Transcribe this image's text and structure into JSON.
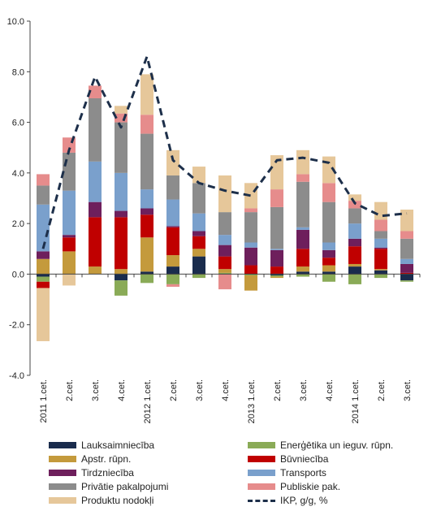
{
  "chart_data": {
    "type": "bar",
    "stacked": true,
    "title": "",
    "xlabel": "",
    "ylabel": "",
    "ylim": [
      -4,
      10
    ],
    "yticks": [
      -4,
      -2,
      0,
      2,
      4,
      6,
      8,
      10
    ],
    "ytick_labels": [
      "-4.0",
      "-2.0",
      "0.0",
      "2.0",
      "4.0",
      "6.0",
      "8.0",
      "10.0"
    ],
    "categories": [
      "2011 1.cet.",
      "2.cet.",
      "3.cet.",
      "4.cet.",
      "2012 1.cet.",
      "2.cet.",
      "3.cet.",
      "4.cet.",
      "2013 1.cet.",
      "2.cet.",
      "3.cet.",
      "4.cet.",
      "2014 1.cet.",
      "2.cet.",
      "3.cet."
    ],
    "grid": false,
    "legend_position": "bottom",
    "series": [
      {
        "name": "Lauksaimniecība",
        "color": "#1a2c4d",
        "values": [
          -0.1,
          0.0,
          0.0,
          -0.25,
          0.1,
          0.3,
          0.7,
          0.0,
          0.0,
          -0.05,
          0.1,
          0.1,
          0.3,
          0.15,
          -0.25
        ]
      },
      {
        "name": "Enerģētika un ieguv. rūpn.",
        "color": "#8aab57",
        "values": [
          -0.2,
          0.0,
          0.0,
          -0.6,
          -0.35,
          -0.4,
          -0.15,
          0.05,
          -0.05,
          -0.05,
          -0.1,
          -0.3,
          -0.4,
          -0.15,
          -0.05
        ]
      },
      {
        "name": "Apstr. rūpn.",
        "color": "#c49a3c",
        "values": [
          0.6,
          0.9,
          0.3,
          0.2,
          1.35,
          0.45,
          0.3,
          0.15,
          -0.6,
          -0.05,
          0.2,
          0.25,
          0.1,
          0.05,
          0.0
        ]
      },
      {
        "name": "Būvniecība",
        "color": "#c00000",
        "values": [
          -0.25,
          0.55,
          1.95,
          2.05,
          0.9,
          1.1,
          0.5,
          0.5,
          0.35,
          0.3,
          0.7,
          0.3,
          0.7,
          0.8,
          0.05
        ]
      },
      {
        "name": "Tirdzniecība",
        "color": "#6e1f5c",
        "values": [
          0.3,
          0.1,
          0.6,
          0.25,
          0.25,
          0.05,
          0.2,
          0.45,
          0.7,
          0.65,
          0.75,
          0.3,
          0.3,
          0.05,
          0.35
        ]
      },
      {
        "name": "Transports",
        "color": "#7aa0cc",
        "values": [
          1.85,
          1.75,
          1.6,
          1.5,
          0.75,
          1.05,
          0.7,
          0.4,
          0.2,
          0.05,
          0.1,
          0.3,
          0.6,
          0.35,
          0.2
        ]
      },
      {
        "name": "Privātie pakalpojumi",
        "color": "#8c8c8c",
        "values": [
          0.75,
          1.5,
          2.5,
          2.0,
          2.2,
          0.95,
          1.2,
          0.9,
          1.2,
          1.65,
          1.8,
          1.6,
          0.6,
          0.3,
          0.8
        ]
      },
      {
        "name": "Publiskie pak.",
        "color": "#e68c8c",
        "values": [
          0.45,
          0.6,
          0.5,
          0.35,
          0.75,
          -0.1,
          0.0,
          -0.6,
          0.15,
          0.7,
          0.3,
          0.75,
          0.3,
          0.45,
          0.3
        ]
      },
      {
        "name": "Produktu nodokļi",
        "color": "#e6c79a",
        "values": [
          -2.1,
          -0.45,
          0.0,
          0.3,
          1.6,
          1.0,
          0.65,
          1.45,
          1.0,
          1.35,
          0.95,
          1.05,
          0.25,
          0.7,
          0.85
        ]
      }
    ],
    "line_series": {
      "name": "IKP, g/g, %",
      "color": "#1d2f4a",
      "style": "dashed",
      "values": [
        1.0,
        4.9,
        7.8,
        5.8,
        8.6,
        4.5,
        3.6,
        3.3,
        3.1,
        4.5,
        4.6,
        4.4,
        2.8,
        2.3,
        2.4
      ]
    }
  }
}
